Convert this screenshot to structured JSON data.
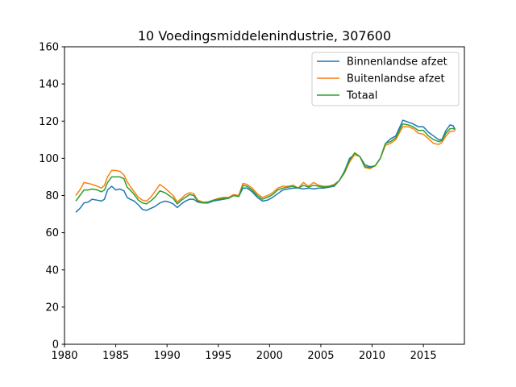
{
  "chart_data": {
    "type": "line",
    "title": "10 Voedingsmiddelenindustrie, 307600",
    "xlabel": "",
    "ylabel": "",
    "xlim": [
      1980,
      2019
    ],
    "ylim": [
      0,
      160
    ],
    "xticks": [
      1980,
      1985,
      1990,
      1995,
      2000,
      2005,
      2010,
      2015
    ],
    "yticks": [
      0,
      20,
      40,
      60,
      80,
      100,
      120,
      140,
      160
    ],
    "grid": false,
    "legend_position": "top-right",
    "series": [
      {
        "name": "Binnenlandse afzet",
        "color": "#1f77b4",
        "points": [
          [
            1981.1,
            71
          ],
          [
            1981.5,
            73
          ],
          [
            1981.9,
            76
          ],
          [
            1982.3,
            76.5
          ],
          [
            1982.7,
            78
          ],
          [
            1983.2,
            77.5
          ],
          [
            1983.6,
            77
          ],
          [
            1983.9,
            78
          ],
          [
            1984.2,
            83
          ],
          [
            1984.6,
            85
          ],
          [
            1985.0,
            83
          ],
          [
            1985.4,
            83.5
          ],
          [
            1985.8,
            82.5
          ],
          [
            1986.1,
            79
          ],
          [
            1986.4,
            78
          ],
          [
            1986.8,
            77
          ],
          [
            1987.2,
            75
          ],
          [
            1987.6,
            72.5
          ],
          [
            1988.0,
            72
          ],
          [
            1988.4,
            73
          ],
          [
            1988.8,
            74
          ],
          [
            1989.3,
            76
          ],
          [
            1989.8,
            77
          ],
          [
            1990.2,
            76.5
          ],
          [
            1990.6,
            75.5
          ],
          [
            1991.0,
            73.5
          ],
          [
            1991.4,
            75.5
          ],
          [
            1991.8,
            77
          ],
          [
            1992.2,
            78
          ],
          [
            1992.6,
            78
          ],
          [
            1993.0,
            76.5
          ],
          [
            1993.5,
            76
          ],
          [
            1994.0,
            76
          ],
          [
            1994.5,
            77
          ],
          [
            1995.0,
            77.5
          ],
          [
            1995.5,
            78
          ],
          [
            1996.0,
            78.5
          ],
          [
            1996.5,
            80
          ],
          [
            1997.0,
            79.5
          ],
          [
            1997.4,
            84
          ],
          [
            1997.8,
            84
          ],
          [
            1998.3,
            82
          ],
          [
            1998.8,
            79
          ],
          [
            1999.3,
            77
          ],
          [
            1999.8,
            77.5
          ],
          [
            2000.3,
            79
          ],
          [
            2000.8,
            81
          ],
          [
            2001.3,
            83
          ],
          [
            2001.8,
            83.5
          ],
          [
            2002.3,
            84
          ],
          [
            2002.8,
            84
          ],
          [
            2003.3,
            83.5
          ],
          [
            2003.8,
            84
          ],
          [
            2004.3,
            83.5
          ],
          [
            2004.8,
            84
          ],
          [
            2005.3,
            84
          ],
          [
            2005.8,
            84.5
          ],
          [
            2006.3,
            85
          ],
          [
            2006.8,
            88
          ],
          [
            2007.3,
            93
          ],
          [
            2007.8,
            100
          ],
          [
            2008.3,
            102
          ],
          [
            2008.8,
            101
          ],
          [
            2009.3,
            96.5
          ],
          [
            2009.8,
            95.5
          ],
          [
            2010.3,
            96
          ],
          [
            2010.8,
            100
          ],
          [
            2011.3,
            108
          ],
          [
            2011.8,
            110.5
          ],
          [
            2012.3,
            112
          ],
          [
            2012.8,
            118
          ],
          [
            2013.0,
            120.5
          ],
          [
            2013.5,
            119.5
          ],
          [
            2014.0,
            118.5
          ],
          [
            2014.5,
            117
          ],
          [
            2015.0,
            117
          ],
          [
            2015.5,
            114
          ],
          [
            2016.0,
            112
          ],
          [
            2016.5,
            110
          ],
          [
            2016.8,
            110
          ],
          [
            2017.2,
            115
          ],
          [
            2017.6,
            118
          ],
          [
            2017.9,
            117.5
          ],
          [
            2018.1,
            115.5
          ]
        ]
      },
      {
        "name": "Buitenlandse afzet",
        "color": "#ff7f0e",
        "points": [
          [
            1981.1,
            80
          ],
          [
            1981.5,
            83
          ],
          [
            1981.9,
            87
          ],
          [
            1982.3,
            86.5
          ],
          [
            1982.7,
            86
          ],
          [
            1983.2,
            85
          ],
          [
            1983.6,
            84
          ],
          [
            1983.9,
            85.5
          ],
          [
            1984.2,
            90
          ],
          [
            1984.6,
            93.5
          ],
          [
            1985.0,
            93.5
          ],
          [
            1985.4,
            93
          ],
          [
            1985.8,
            91
          ],
          [
            1986.1,
            87.5
          ],
          [
            1986.4,
            85
          ],
          [
            1986.8,
            82
          ],
          [
            1987.2,
            79
          ],
          [
            1987.6,
            77.5
          ],
          [
            1988.0,
            77
          ],
          [
            1988.4,
            79
          ],
          [
            1988.8,
            82
          ],
          [
            1989.3,
            86
          ],
          [
            1989.8,
            84
          ],
          [
            1990.2,
            82
          ],
          [
            1990.6,
            80
          ],
          [
            1991.0,
            76.5
          ],
          [
            1991.4,
            78.5
          ],
          [
            1991.8,
            80.5
          ],
          [
            1992.2,
            81.5
          ],
          [
            1992.6,
            81
          ],
          [
            1993.0,
            77.5
          ],
          [
            1993.5,
            76.5
          ],
          [
            1994.0,
            76.5
          ],
          [
            1994.5,
            77.5
          ],
          [
            1995.0,
            78.5
          ],
          [
            1995.5,
            79
          ],
          [
            1996.0,
            79
          ],
          [
            1996.5,
            80.5
          ],
          [
            1997.0,
            80
          ],
          [
            1997.4,
            86.5
          ],
          [
            1997.8,
            86
          ],
          [
            1998.3,
            84
          ],
          [
            1998.8,
            81
          ],
          [
            1999.3,
            79
          ],
          [
            1999.8,
            80
          ],
          [
            2000.3,
            81.5
          ],
          [
            2000.8,
            84
          ],
          [
            2001.3,
            85
          ],
          [
            2001.8,
            85
          ],
          [
            2002.3,
            85.5
          ],
          [
            2002.8,
            84
          ],
          [
            2003.3,
            87
          ],
          [
            2003.8,
            85
          ],
          [
            2004.3,
            87
          ],
          [
            2004.8,
            85.5
          ],
          [
            2005.3,
            85
          ],
          [
            2005.8,
            85
          ],
          [
            2006.3,
            86
          ],
          [
            2006.8,
            88
          ],
          [
            2007.3,
            92
          ],
          [
            2007.8,
            98
          ],
          [
            2008.3,
            102
          ],
          [
            2008.8,
            101
          ],
          [
            2009.3,
            95
          ],
          [
            2009.8,
            94.5
          ],
          [
            2010.3,
            96
          ],
          [
            2010.8,
            100
          ],
          [
            2011.3,
            107
          ],
          [
            2011.8,
            108
          ],
          [
            2012.3,
            110
          ],
          [
            2012.8,
            115
          ],
          [
            2013.0,
            117
          ],
          [
            2013.5,
            117
          ],
          [
            2014.0,
            116
          ],
          [
            2014.5,
            113.5
          ],
          [
            2015.0,
            113
          ],
          [
            2015.5,
            110.5
          ],
          [
            2016.0,
            108
          ],
          [
            2016.5,
            107.5
          ],
          [
            2016.8,
            108.5
          ],
          [
            2017.2,
            112
          ],
          [
            2017.6,
            114.5
          ],
          [
            2017.9,
            114.5
          ],
          [
            2018.1,
            115
          ]
        ]
      },
      {
        "name": "Totaal",
        "color": "#2ca02c",
        "points": [
          [
            1981.1,
            77
          ],
          [
            1981.5,
            80
          ],
          [
            1981.9,
            83
          ],
          [
            1982.3,
            83
          ],
          [
            1982.7,
            83.5
          ],
          [
            1983.2,
            83
          ],
          [
            1983.6,
            82
          ],
          [
            1983.9,
            83
          ],
          [
            1984.2,
            87
          ],
          [
            1984.6,
            90
          ],
          [
            1985.0,
            90
          ],
          [
            1985.4,
            90
          ],
          [
            1985.8,
            89
          ],
          [
            1986.1,
            84.5
          ],
          [
            1986.4,
            83
          ],
          [
            1986.8,
            80.5
          ],
          [
            1987.2,
            77.5
          ],
          [
            1987.6,
            76
          ],
          [
            1988.0,
            75.5
          ],
          [
            1988.4,
            77
          ],
          [
            1988.8,
            79
          ],
          [
            1989.3,
            82.5
          ],
          [
            1989.8,
            81.5
          ],
          [
            1990.2,
            80
          ],
          [
            1990.6,
            78.5
          ],
          [
            1991.0,
            75.5
          ],
          [
            1991.4,
            77.5
          ],
          [
            1991.8,
            79
          ],
          [
            1992.2,
            80.5
          ],
          [
            1992.6,
            80
          ],
          [
            1993.0,
            77
          ],
          [
            1993.5,
            76
          ],
          [
            1994.0,
            76.5
          ],
          [
            1994.5,
            77.5
          ],
          [
            1995.0,
            78
          ],
          [
            1995.5,
            78.5
          ],
          [
            1996.0,
            78.5
          ],
          [
            1996.5,
            80
          ],
          [
            1997.0,
            79.5
          ],
          [
            1997.4,
            85.5
          ],
          [
            1997.8,
            85
          ],
          [
            1998.3,
            83
          ],
          [
            1998.8,
            80
          ],
          [
            1999.3,
            78
          ],
          [
            1999.8,
            79
          ],
          [
            2000.3,
            80.5
          ],
          [
            2000.8,
            83
          ],
          [
            2001.3,
            84
          ],
          [
            2001.8,
            84.5
          ],
          [
            2002.3,
            85
          ],
          [
            2002.8,
            84
          ],
          [
            2003.3,
            85.5
          ],
          [
            2003.8,
            84.5
          ],
          [
            2004.3,
            85.5
          ],
          [
            2004.8,
            85
          ],
          [
            2005.3,
            84.5
          ],
          [
            2005.8,
            85
          ],
          [
            2006.3,
            85.5
          ],
          [
            2006.8,
            88
          ],
          [
            2007.3,
            92.5
          ],
          [
            2007.8,
            99
          ],
          [
            2008.3,
            103
          ],
          [
            2008.8,
            101
          ],
          [
            2009.3,
            95.5
          ],
          [
            2009.8,
            95
          ],
          [
            2010.3,
            96
          ],
          [
            2010.8,
            100
          ],
          [
            2011.3,
            108
          ],
          [
            2011.8,
            109
          ],
          [
            2012.3,
            111
          ],
          [
            2012.8,
            116.5
          ],
          [
            2013.0,
            118.5
          ],
          [
            2013.5,
            118
          ],
          [
            2014.0,
            117
          ],
          [
            2014.5,
            115
          ],
          [
            2015.0,
            115
          ],
          [
            2015.5,
            112
          ],
          [
            2016.0,
            110
          ],
          [
            2016.5,
            109
          ],
          [
            2016.8,
            109.5
          ],
          [
            2017.2,
            113.5
          ],
          [
            2017.6,
            116
          ],
          [
            2017.9,
            116
          ],
          [
            2018.1,
            115.5
          ]
        ]
      }
    ]
  }
}
